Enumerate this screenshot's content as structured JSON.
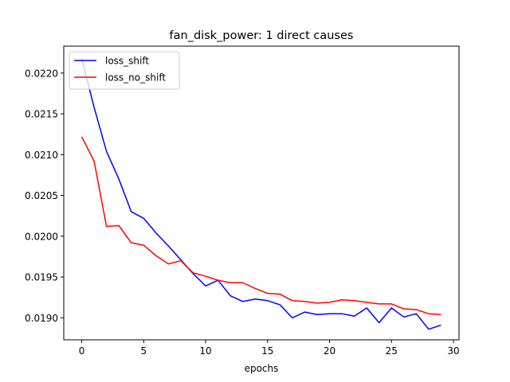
{
  "chart_data": {
    "type": "line",
    "title": "fan_disk_power: 1 direct causes",
    "xlabel": "epochs",
    "ylabel": "",
    "xlim": [
      -1.45,
      30.45
    ],
    "ylim": [
      0.01873,
      0.02233
    ],
    "xticks": [
      0,
      5,
      10,
      15,
      20,
      25,
      30
    ],
    "yticks": [
      0.019,
      0.0195,
      0.02,
      0.0205,
      0.021,
      0.0215,
      0.022
    ],
    "ytick_labels": [
      "0.0190",
      "0.0195",
      "0.0200",
      "0.0205",
      "0.0210",
      "0.0215",
      "0.0220"
    ],
    "grid": false,
    "legend_position": "top-left",
    "x": [
      0,
      1,
      2,
      3,
      4,
      5,
      6,
      7,
      8,
      9,
      10,
      11,
      12,
      13,
      14,
      15,
      16,
      17,
      18,
      19,
      20,
      21,
      22,
      23,
      24,
      25,
      26,
      27,
      28,
      29
    ],
    "series": [
      {
        "name": "loss_shift",
        "color": "#0000ff",
        "values": [
          0.02218,
          0.02158,
          0.02104,
          0.0207,
          0.0203,
          0.02022,
          0.02004,
          0.01988,
          0.01971,
          0.01954,
          0.01939,
          0.01946,
          0.01927,
          0.0192,
          0.01923,
          0.01921,
          0.01916,
          0.019,
          0.01907,
          0.01904,
          0.01905,
          0.01905,
          0.01902,
          0.01912,
          0.01894,
          0.01912,
          0.01901,
          0.01905,
          0.01886,
          0.01891
        ]
      },
      {
        "name": "loss_no_shift",
        "color": "#ff0000",
        "values": [
          0.02122,
          0.02092,
          0.02012,
          0.02013,
          0.01992,
          0.01989,
          0.01976,
          0.01966,
          0.0197,
          0.01955,
          0.01951,
          0.01946,
          0.01943,
          0.01943,
          0.01936,
          0.0193,
          0.01929,
          0.01921,
          0.0192,
          0.01918,
          0.01919,
          0.01922,
          0.01921,
          0.01919,
          0.01917,
          0.01917,
          0.01911,
          0.0191,
          0.01905,
          0.01904
        ]
      }
    ]
  }
}
